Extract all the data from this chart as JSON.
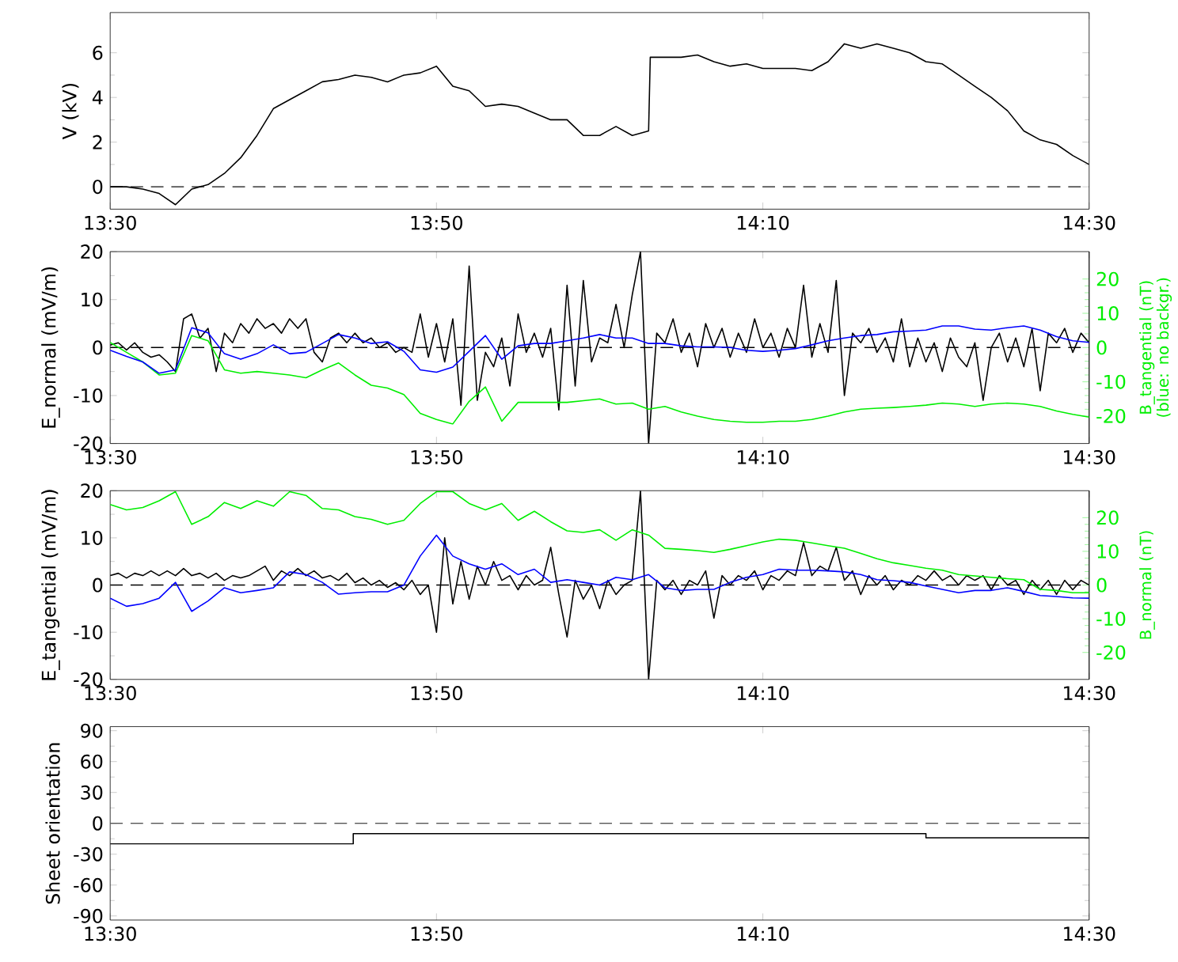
{
  "chart_data": [
    {
      "type": "line",
      "ylabel": "V (kV)",
      "xlim": [
        13.5,
        14.5
      ],
      "ylim": [
        -1,
        7.8
      ],
      "yticks": [
        0,
        2,
        4,
        6
      ],
      "xticks": [
        {
          "value": 13.5,
          "label": "13:30"
        },
        {
          "value": 13.8333,
          "label": "13:50"
        },
        {
          "value": 14.1667,
          "label": "14:10"
        },
        {
          "value": 14.5,
          "label": "14:30"
        }
      ],
      "ref_lines": [
        {
          "axis": "y",
          "value": 0,
          "color": "#555555",
          "line_style": "dashed"
        }
      ],
      "series": [
        {
          "color": "#000000",
          "x": [
            13.5,
            13.5167,
            13.5333,
            13.55,
            13.5667,
            13.5833,
            13.6,
            13.6167,
            13.6333,
            13.65,
            13.6667,
            13.6833,
            13.7,
            13.7167,
            13.7333,
            13.75,
            13.7667,
            13.7833,
            13.8,
            13.8167,
            13.8333,
            13.85,
            13.8667,
            13.8833,
            13.9,
            13.9167,
            13.9333,
            13.95,
            13.9667,
            13.9833,
            14.0,
            14.0167,
            14.0333,
            14.05,
            14.0517,
            14.0667,
            14.0833,
            14.1,
            14.1167,
            14.1333,
            14.15,
            14.1667,
            14.1833,
            14.2,
            14.2167,
            14.2333,
            14.25,
            14.2667,
            14.2833,
            14.3,
            14.3167,
            14.3333,
            14.35,
            14.3667,
            14.3833,
            14.4,
            14.4167,
            14.4333,
            14.45,
            14.4667,
            14.4833,
            14.5
          ],
          "values": [
            0,
            0,
            -0.1,
            -0.3,
            -0.8,
            -0.1,
            0.1,
            0.6,
            1.3,
            2.3,
            3.5,
            3.9,
            4.3,
            4.7,
            4.8,
            5.0,
            4.9,
            4.7,
            5.0,
            5.1,
            5.4,
            4.5,
            4.3,
            3.6,
            3.7,
            3.6,
            3.3,
            3.0,
            3.0,
            2.3,
            2.3,
            2.7,
            2.3,
            2.5,
            5.8,
            5.8,
            5.8,
            5.9,
            5.6,
            5.4,
            5.5,
            5.3,
            5.3,
            5.3,
            5.2,
            5.6,
            6.4,
            6.2,
            6.4,
            6.2,
            6.0,
            5.6,
            5.5,
            5.0,
            4.5,
            4.0,
            3.4,
            2.5,
            2.1,
            1.9,
            1.4,
            1.0
          ]
        }
      ]
    },
    {
      "type": "line",
      "ylabel": "E_normal (mV/m)",
      "y2label": "B_tangential (nT) (blue: no backgr.)",
      "xlim": [
        13.5,
        14.5
      ],
      "ylim": [
        -20,
        20
      ],
      "yticks": [
        -20,
        -10,
        0,
        10,
        20
      ],
      "y2lim": [
        -28,
        28
      ],
      "y2ticks": [
        -20,
        -10,
        0,
        10,
        20
      ],
      "xticks": [
        {
          "value": 13.5,
          "label": "13:30"
        },
        {
          "value": 13.8333,
          "label": "13:50"
        },
        {
          "value": 14.1667,
          "label": "14:10"
        },
        {
          "value": 14.5,
          "label": "14:30"
        }
      ],
      "ref_lines": [
        {
          "axis": "y",
          "value": 0,
          "color": "#000000",
          "line_style": "dashed"
        }
      ],
      "x": [
        13.5,
        13.5167,
        13.5333,
        13.55,
        13.5667,
        13.5833,
        13.6,
        13.6167,
        13.6333,
        13.65,
        13.6667,
        13.6833,
        13.7,
        13.7167,
        13.7333,
        13.75,
        13.7667,
        13.7833,
        13.8,
        13.8167,
        13.8333,
        13.85,
        13.8667,
        13.8833,
        13.9,
        13.9167,
        13.9333,
        13.95,
        13.9667,
        13.9833,
        14.0,
        14.0167,
        14.0333,
        14.05,
        14.0667,
        14.0833,
        14.1,
        14.1167,
        14.1333,
        14.15,
        14.1667,
        14.1833,
        14.2,
        14.2167,
        14.2333,
        14.25,
        14.2667,
        14.2833,
        14.3,
        14.3167,
        14.3333,
        14.35,
        14.3667,
        14.3833,
        14.4,
        14.4167,
        14.4333,
        14.45,
        14.4667,
        14.4833,
        14.5
      ],
      "series": [
        {
          "color": "#00ee00",
          "axis": "y2",
          "values": [
            1.5,
            -1.4,
            -4.2,
            -8,
            -7.5,
            3.5,
            2,
            -6.5,
            -7.5,
            -7,
            -7.5,
            -8,
            -8.8,
            -6.5,
            -4.5,
            -8,
            -11,
            -11.8,
            -13.7,
            -19.2,
            -21,
            -22.3,
            -15.7,
            -11.5,
            -21.5,
            -16,
            -16,
            -16,
            -16,
            -15.5,
            -15,
            -16.5,
            -16.2,
            -18,
            -17.2,
            -18.8,
            -20,
            -21,
            -21.5,
            -21.8,
            -21.8,
            -21.5,
            -21.5,
            -21,
            -20,
            -18.8,
            -18,
            -17.7,
            -17.5,
            -17.2,
            -16.8,
            -16.2,
            -16.5,
            -17.2,
            -16.5,
            -16.2,
            -16.5,
            -17.2,
            -18.5,
            -19.5,
            -20.3
          ]
        },
        {
          "color": "#000000",
          "x": [
            13.5,
            13.5083,
            13.5167,
            13.525,
            13.5333,
            13.5417,
            13.55,
            13.5583,
            13.5667,
            13.575,
            13.5833,
            13.5917,
            13.6,
            13.6083,
            13.6167,
            13.625,
            13.6333,
            13.6417,
            13.65,
            13.6583,
            13.6667,
            13.675,
            13.6833,
            13.6917,
            13.7,
            13.7083,
            13.7167,
            13.725,
            13.7333,
            13.7417,
            13.75,
            13.7583,
            13.7667,
            13.775,
            13.7833,
            13.7917,
            13.8,
            13.8083,
            13.8167,
            13.825,
            13.8333,
            13.8417,
            13.85,
            13.8583,
            13.8667,
            13.875,
            13.8833,
            13.8917,
            13.9,
            13.9083,
            13.9167,
            13.925,
            13.9333,
            13.9417,
            13.95,
            13.9583,
            13.9667,
            13.975,
            13.9833,
            13.9917,
            14.0,
            14.0083,
            14.0167,
            14.025,
            14.0333,
            14.0417,
            14.05,
            14.0583,
            14.0667,
            14.075,
            14.0833,
            14.0917,
            14.1,
            14.1083,
            14.1167,
            14.125,
            14.1333,
            14.1417,
            14.15,
            14.1583,
            14.1667,
            14.175,
            14.1833,
            14.1917,
            14.2,
            14.2083,
            14.2167,
            14.225,
            14.2333,
            14.2417,
            14.25,
            14.2583,
            14.2667,
            14.275,
            14.2833,
            14.2917,
            14.3,
            14.3083,
            14.3167,
            14.325,
            14.3333,
            14.3417,
            14.35,
            14.3583,
            14.3667,
            14.375,
            14.3833,
            14.3917,
            14.4,
            14.4083,
            14.4167,
            14.425,
            14.4333,
            14.4417,
            14.45,
            14.4583,
            14.4667,
            14.475,
            14.4833,
            14.4917,
            14.5
          ],
          "values": [
            0.5,
            1,
            -0.5,
            1,
            -1,
            -2,
            -1.5,
            -3,
            -5,
            6,
            7,
            2,
            4,
            -5,
            3,
            1,
            5,
            3,
            6,
            4,
            5,
            3,
            6,
            4,
            6,
            -1,
            -3,
            2,
            3,
            1,
            3,
            1,
            2,
            0,
            1,
            -1,
            0,
            -1,
            7,
            -2,
            5,
            -3,
            6,
            -12,
            17,
            -11,
            -1,
            -4,
            2,
            -8,
            7,
            -1,
            3,
            -2,
            4,
            -13,
            13,
            -8,
            14,
            -3,
            2,
            1,
            9,
            0,
            11,
            20,
            -20,
            3,
            1,
            6,
            -1,
            3,
            -4,
            5,
            0,
            4,
            -2,
            3,
            -1,
            6,
            0,
            3,
            -2,
            4,
            0,
            13,
            -2,
            5,
            -1,
            14,
            -10,
            3,
            1,
            4,
            -1,
            2,
            -3,
            6,
            -4,
            2,
            -3,
            1,
            -5,
            2,
            -2,
            -4,
            1,
            -11,
            0,
            3,
            -3,
            2,
            -4,
            4,
            -9,
            3,
            1,
            4,
            -1,
            3,
            1
          ]
        },
        {
          "color": "#0000ff",
          "axis": "y2",
          "values": [
            -0.8,
            -2.6,
            -4.2,
            -7.5,
            -6.5,
            5.8,
            4.3,
            -1.8,
            -3.4,
            -1.8,
            0.8,
            -1.8,
            -1.4,
            1.2,
            3.8,
            2.8,
            1.2,
            1.7,
            -1.1,
            -6.5,
            -7.2,
            -5.7,
            -1.1,
            3.5,
            -3.4,
            0.5,
            1.2,
            1.2,
            2,
            2.8,
            3.8,
            2.8,
            2.8,
            1.2,
            1.2,
            0.5,
            0.2,
            0.2,
            0,
            -0.8,
            -1.1,
            -0.8,
            -0.3,
            0.8,
            2,
            2.8,
            3.5,
            3.8,
            4.6,
            4.8,
            5.1,
            6.3,
            6.3,
            5.4,
            5.1,
            5.8,
            6.3,
            5.1,
            3.2,
            2,
            1.5
          ]
        }
      ]
    },
    {
      "type": "line",
      "ylabel": "E_tangential (mV/m)",
      "y2label": "B_normal (nT)",
      "xlim": [
        13.5,
        14.5
      ],
      "ylim": [
        -20,
        20
      ],
      "yticks": [
        -20,
        -10,
        0,
        10,
        20
      ],
      "y2lim": [
        -28,
        28
      ],
      "y2ticks": [
        -20,
        -10,
        0,
        10,
        20
      ],
      "xticks": [
        {
          "value": 13.5,
          "label": "13:30"
        },
        {
          "value": 13.8333,
          "label": "13:50"
        },
        {
          "value": 14.1667,
          "label": "14:10"
        },
        {
          "value": 14.5,
          "label": "14:30"
        }
      ],
      "ref_lines": [
        {
          "axis": "y",
          "value": 0,
          "color": "#000000",
          "line_style": "dashed"
        }
      ],
      "x": [
        13.5,
        13.5167,
        13.5333,
        13.55,
        13.5667,
        13.5833,
        13.6,
        13.6167,
        13.6333,
        13.65,
        13.6667,
        13.6833,
        13.7,
        13.7167,
        13.7333,
        13.75,
        13.7667,
        13.7833,
        13.8,
        13.8167,
        13.8333,
        13.85,
        13.8667,
        13.8833,
        13.9,
        13.9167,
        13.9333,
        13.95,
        13.9667,
        13.9833,
        14.0,
        14.0167,
        14.0333,
        14.05,
        14.0667,
        14.0833,
        14.1,
        14.1167,
        14.1333,
        14.15,
        14.1667,
        14.1833,
        14.2,
        14.2167,
        14.2333,
        14.25,
        14.2667,
        14.2833,
        14.3,
        14.3167,
        14.3333,
        14.35,
        14.3667,
        14.3833,
        14.4,
        14.4167,
        14.4333,
        14.45,
        14.4667,
        14.4833,
        14.5
      ],
      "series": [
        {
          "color": "#00ee00",
          "axis": "y2",
          "values": [
            23.9,
            22.3,
            23,
            25,
            27.7,
            18,
            20.3,
            24.5,
            22.7,
            25,
            23.4,
            27.7,
            26.6,
            22.7,
            22.3,
            20.3,
            19.5,
            18,
            19.2,
            24.2,
            27.7,
            27.7,
            24.2,
            22.3,
            24.2,
            19.2,
            21.9,
            18.8,
            16.1,
            15.6,
            16.4,
            13.3,
            16.4,
            14.8,
            10.9,
            10.6,
            10.2,
            9.7,
            10.6,
            11.7,
            12.8,
            13.6,
            13.3,
            12.5,
            11.7,
            10.9,
            9.4,
            7.8,
            6.6,
            5.8,
            5,
            4.4,
            3.1,
            2.7,
            2.3,
            1.9,
            1.6,
            -1.3,
            -1.6,
            -2.3,
            -2.3
          ]
        },
        {
          "color": "#000000",
          "x": [
            13.5,
            13.5083,
            13.5167,
            13.525,
            13.5333,
            13.5417,
            13.55,
            13.5583,
            13.5667,
            13.575,
            13.5833,
            13.5917,
            13.6,
            13.6083,
            13.6167,
            13.625,
            13.6333,
            13.6417,
            13.65,
            13.6583,
            13.6667,
            13.675,
            13.6833,
            13.6917,
            13.7,
            13.7083,
            13.7167,
            13.725,
            13.7333,
            13.7417,
            13.75,
            13.7583,
            13.7667,
            13.775,
            13.7833,
            13.7917,
            13.8,
            13.8083,
            13.8167,
            13.825,
            13.8333,
            13.8417,
            13.85,
            13.8583,
            13.8667,
            13.875,
            13.8833,
            13.8917,
            13.9,
            13.9083,
            13.9167,
            13.925,
            13.9333,
            13.9417,
            13.95,
            13.9583,
            13.9667,
            13.975,
            13.9833,
            13.9917,
            14.0,
            14.0083,
            14.0167,
            14.025,
            14.0333,
            14.0417,
            14.05,
            14.0583,
            14.0667,
            14.075,
            14.0833,
            14.0917,
            14.1,
            14.1083,
            14.1167,
            14.125,
            14.1333,
            14.1417,
            14.15,
            14.1583,
            14.1667,
            14.175,
            14.1833,
            14.1917,
            14.2,
            14.2083,
            14.2167,
            14.225,
            14.2333,
            14.2417,
            14.25,
            14.2583,
            14.2667,
            14.275,
            14.2833,
            14.2917,
            14.3,
            14.3083,
            14.3167,
            14.325,
            14.3333,
            14.3417,
            14.35,
            14.3583,
            14.3667,
            14.375,
            14.3833,
            14.3917,
            14.4,
            14.4083,
            14.4167,
            14.425,
            14.4333,
            14.4417,
            14.45,
            14.4583,
            14.4667,
            14.475,
            14.4833,
            14.4917,
            14.5
          ],
          "values": [
            2,
            2.5,
            1.5,
            2.5,
            2,
            3,
            2,
            3,
            2,
            3.5,
            2,
            2.5,
            1.5,
            2.5,
            1,
            2,
            1.5,
            2,
            3,
            4,
            1,
            3,
            2,
            3.5,
            2,
            3,
            1.5,
            2,
            1,
            2.5,
            0.5,
            1.5,
            0,
            1,
            -0.5,
            0.5,
            -1,
            1,
            -2,
            0,
            -10,
            10,
            -4,
            5,
            -3,
            4,
            0,
            5,
            1,
            2,
            -1,
            2,
            0,
            1,
            8,
            -2,
            -11,
            1,
            -3,
            0,
            -5,
            1,
            -2,
            0,
            1,
            20,
            -20,
            1,
            -1,
            1,
            -2,
            1,
            0,
            3,
            -7,
            2,
            0,
            2,
            1,
            3,
            -1,
            2,
            1,
            3,
            2,
            9,
            2,
            4,
            3,
            8,
            1,
            3,
            -2,
            2,
            0,
            2,
            -1,
            1,
            0,
            2,
            1,
            3,
            1,
            2,
            0,
            2,
            1,
            2,
            -1,
            2,
            0,
            1,
            -2,
            1,
            -1,
            1,
            -2,
            1,
            -1,
            1,
            0
          ]
        },
        {
          "color": "#0000ff",
          "axis": "y2",
          "values": [
            -3.9,
            -6.3,
            -5.5,
            -3.9,
            0.8,
            -7.8,
            -4.7,
            -0.8,
            -2.3,
            -1.6,
            -0.8,
            3.9,
            3.1,
            0.8,
            -2.7,
            -2.3,
            -2,
            -2,
            0,
            8.6,
            14.8,
            8.6,
            6.3,
            4.7,
            6.3,
            3.1,
            4.7,
            0.8,
            1.6,
            0.8,
            0,
            2.3,
            1.6,
            3.1,
            -0.8,
            -1.6,
            -1.3,
            -1.3,
            0.8,
            2.3,
            3.1,
            4.7,
            4.4,
            4.4,
            4.2,
            3.9,
            3.1,
            1.6,
            1.3,
            0.8,
            -0.3,
            -1.3,
            -2.3,
            -1.6,
            -1.6,
            -0.8,
            -1.9,
            -3.1,
            -3.4,
            -3.8,
            -3.9
          ]
        }
      ]
    },
    {
      "type": "step",
      "ylabel": "Sheet orientation",
      "xlim": [
        13.5,
        14.5
      ],
      "ylim": [
        -94,
        94
      ],
      "yticks": [
        -90,
        -60,
        -30,
        0,
        30,
        60,
        90
      ],
      "xticks": [
        {
          "value": 13.5,
          "label": "13:30"
        },
        {
          "value": 13.8333,
          "label": "13:50"
        },
        {
          "value": 14.1667,
          "label": "14:10"
        },
        {
          "value": 14.5,
          "label": "14:30"
        }
      ],
      "ref_lines": [
        {
          "axis": "y",
          "value": 0,
          "color": "#555555",
          "line_style": "dashed"
        }
      ],
      "series": [
        {
          "color": "#000000",
          "x": [
            13.5,
            13.7483,
            14.3333,
            14.5
          ],
          "values": [
            -20,
            -10,
            -14,
            -14
          ]
        }
      ]
    }
  ]
}
